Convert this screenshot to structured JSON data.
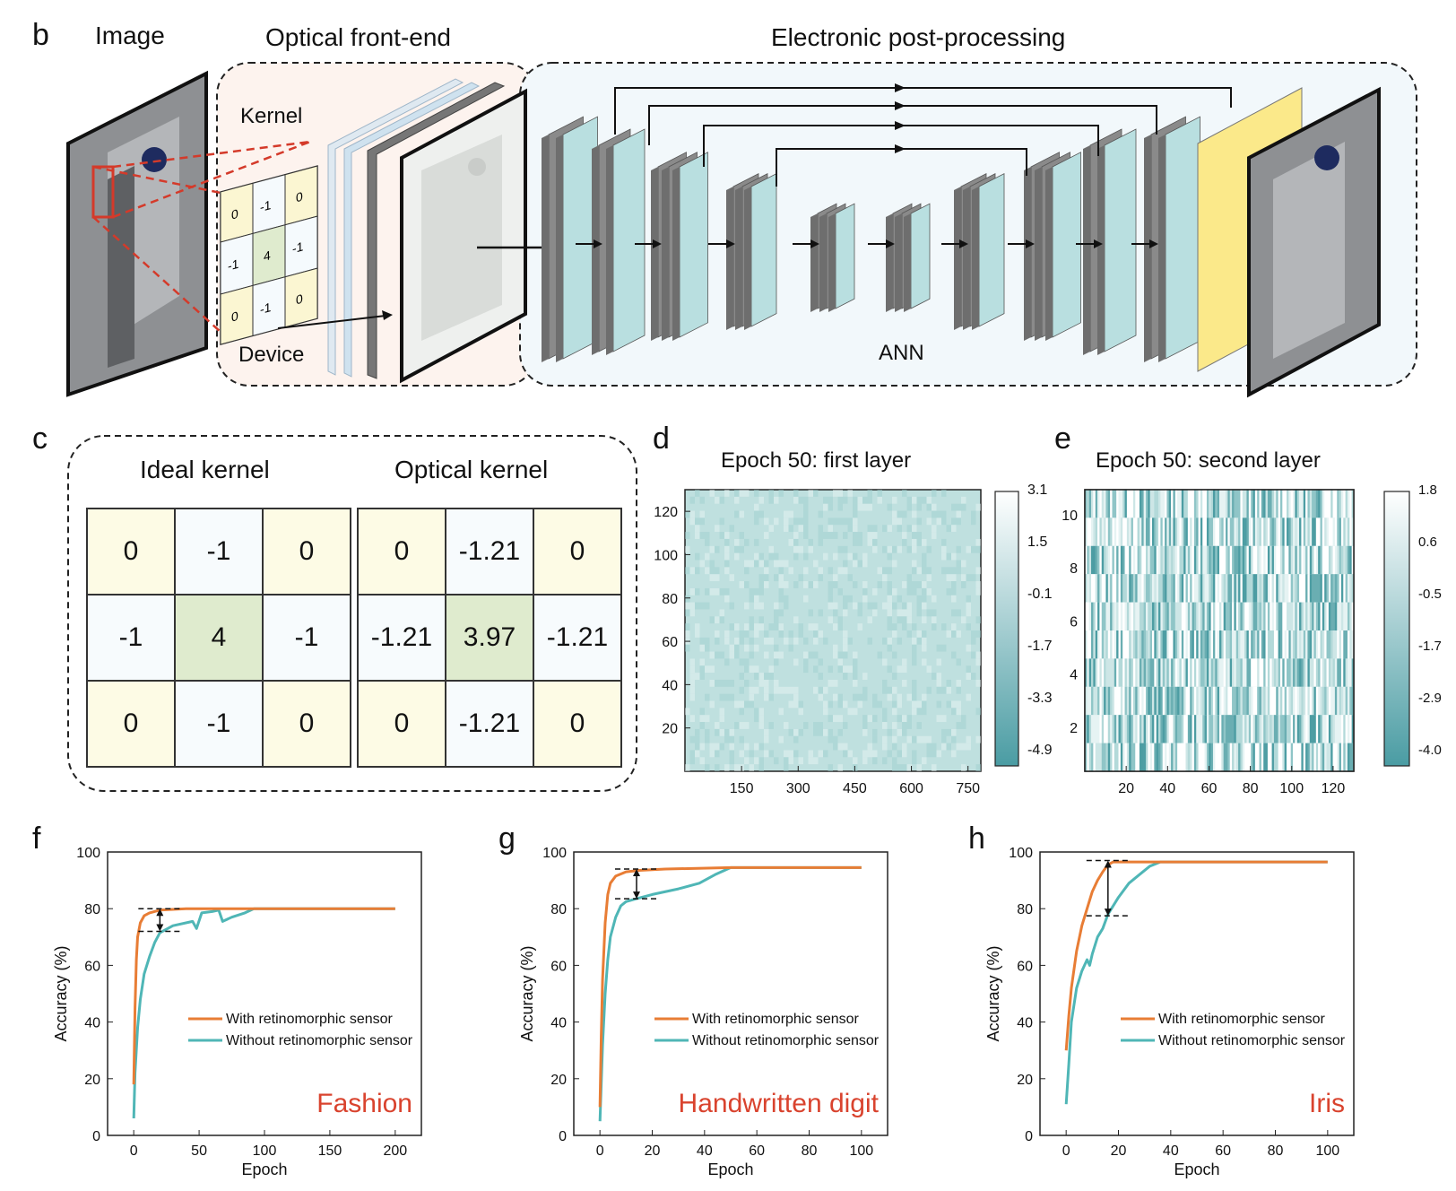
{
  "panel_b": {
    "letter": "b",
    "image_label": "Image",
    "optical_label": "Optical front-end",
    "electronic_label": "Electronic post-processing",
    "kernel_label": "Kernel",
    "device_label": "Device",
    "ann_label": "ANN",
    "kernel_values": [
      "0",
      "-1",
      "0",
      "-1",
      "4",
      "-1",
      "0",
      "-1",
      "0"
    ],
    "colors": {
      "teal": "#b9dfe0",
      "gray": "#8a8a8a",
      "yellow": "#fbe98a",
      "red": "#d43a2a"
    }
  },
  "panel_c": {
    "letter": "c",
    "ideal_title": "Ideal kernel",
    "optical_title": "Optical kernel",
    "ideal": [
      [
        "0",
        "-1",
        "0"
      ],
      [
        "-1",
        "4",
        "-1"
      ],
      [
        "0",
        "-1",
        "0"
      ]
    ],
    "optical": [
      [
        "0",
        "-1.21",
        "0"
      ],
      [
        "-1.21",
        "3.97",
        "-1.21"
      ],
      [
        "0",
        "-1.21",
        "0"
      ]
    ]
  },
  "panel_d": {
    "letter": "d",
    "title": "Epoch 50: first layer",
    "y_ticks": [
      "20",
      "40",
      "60",
      "80",
      "100",
      "120"
    ],
    "x_ticks": [
      "150",
      "300",
      "450",
      "600",
      "750"
    ],
    "colorbar_ticks": [
      "3.1",
      "1.5",
      "-0.1",
      "-1.7",
      "-3.3",
      "-4.9"
    ]
  },
  "panel_e": {
    "letter": "e",
    "title": "Epoch 50: second layer",
    "y_ticks": [
      "2",
      "4",
      "6",
      "8",
      "10"
    ],
    "x_ticks": [
      "20",
      "40",
      "60",
      "80",
      "100",
      "120"
    ],
    "colorbar_ticks": [
      "1.8",
      "0.6",
      "-0.5",
      "-1.7",
      "-2.9",
      "-4.0"
    ]
  },
  "chart_data": [
    {
      "type": "line",
      "panel": "f",
      "dataset_label": "Fashion",
      "xlabel": "Epoch",
      "ylabel": "Accuracy (%)",
      "xlim": [
        -20,
        220
      ],
      "ylim": [
        0,
        100
      ],
      "x_ticks": [
        0,
        50,
        100,
        150,
        200
      ],
      "y_ticks": [
        0,
        20,
        40,
        60,
        80,
        100
      ],
      "legend": [
        "With retinomorphic sensor",
        "Without retinomorphic sensor"
      ],
      "series": [
        {
          "name": "With retinomorphic sensor",
          "color": "#e87d35",
          "points": [
            [
              0,
              18
            ],
            [
              1,
              45
            ],
            [
              2,
              62
            ],
            [
              3,
              70
            ],
            [
              5,
              75
            ],
            [
              8,
              77.5
            ],
            [
              12,
              78.5
            ],
            [
              20,
              79.5
            ],
            [
              40,
              80
            ],
            [
              100,
              80
            ],
            [
              200,
              80
            ]
          ]
        },
        {
          "name": "Without retinomorphic sensor",
          "color": "#4fb6b6",
          "points": [
            [
              0,
              6
            ],
            [
              1,
              22
            ],
            [
              3,
              38
            ],
            [
              5,
              48
            ],
            [
              8,
              57
            ],
            [
              12,
              63
            ],
            [
              16,
              68
            ],
            [
              20,
              71.5
            ],
            [
              30,
              74
            ],
            [
              45,
              75.5
            ],
            [
              48,
              73
            ],
            [
              52,
              78.5
            ],
            [
              60,
              79
            ],
            [
              65,
              79.5
            ],
            [
              68,
              75.5
            ],
            [
              75,
              77
            ],
            [
              85,
              78.5
            ],
            [
              92,
              80
            ],
            [
              200,
              80
            ]
          ]
        }
      ],
      "gap_annotation": {
        "x": 20,
        "upper": 80,
        "lower": 72
      }
    },
    {
      "type": "line",
      "panel": "g",
      "dataset_label": "Handwritten digit",
      "xlabel": "Epoch",
      "ylabel": "Accuracy (%)",
      "xlim": [
        -10,
        110
      ],
      "ylim": [
        0,
        100
      ],
      "x_ticks": [
        0,
        20,
        40,
        60,
        80,
        100
      ],
      "y_ticks": [
        0,
        20,
        40,
        60,
        80,
        100
      ],
      "legend": [
        "With retinomorphic sensor",
        "Without retinomorphic sensor"
      ],
      "series": [
        {
          "name": "With retinomorphic sensor",
          "color": "#e87d35",
          "points": [
            [
              0,
              10
            ],
            [
              0.5,
              35
            ],
            [
              1,
              55
            ],
            [
              2,
              75
            ],
            [
              3,
              85
            ],
            [
              4,
              89
            ],
            [
              6,
              91.5
            ],
            [
              10,
              93
            ],
            [
              15,
              93.5
            ],
            [
              25,
              94
            ],
            [
              50,
              94.5
            ],
            [
              100,
              94.5
            ]
          ]
        },
        {
          "name": "Without retinomorphic sensor",
          "color": "#4fb6b6",
          "points": [
            [
              0,
              5
            ],
            [
              0.5,
              18
            ],
            [
              1,
              32
            ],
            [
              2,
              50
            ],
            [
              3,
              62
            ],
            [
              4,
              70
            ],
            [
              6,
              77
            ],
            [
              8,
              81
            ],
            [
              10,
              82.5
            ],
            [
              14,
              83.5
            ],
            [
              20,
              85
            ],
            [
              30,
              87
            ],
            [
              38,
              89
            ],
            [
              44,
              92
            ],
            [
              50,
              94.5
            ],
            [
              100,
              94.5
            ]
          ]
        }
      ],
      "gap_annotation": {
        "x": 14,
        "upper": 94,
        "lower": 83.5
      }
    },
    {
      "type": "line",
      "panel": "h",
      "dataset_label": "Iris",
      "xlabel": "Epoch",
      "ylabel": "Accuracy (%)",
      "xlim": [
        -10,
        110
      ],
      "ylim": [
        0,
        100
      ],
      "x_ticks": [
        0,
        20,
        40,
        60,
        80,
        100
      ],
      "y_ticks": [
        0,
        20,
        40,
        60,
        80,
        100
      ],
      "legend": [
        "With retinomorphic sensor",
        "Without retinomorphic sensor"
      ],
      "series": [
        {
          "name": "With retinomorphic sensor",
          "color": "#e87d35",
          "points": [
            [
              0,
              30
            ],
            [
              1,
              42
            ],
            [
              2,
              52
            ],
            [
              4,
              65
            ],
            [
              6,
              74
            ],
            [
              8,
              80
            ],
            [
              10,
              86
            ],
            [
              12,
              90
            ],
            [
              14,
              93
            ],
            [
              16,
              95.5
            ],
            [
              18,
              96.5
            ],
            [
              100,
              96.5
            ]
          ]
        },
        {
          "name": "Without retinomorphic sensor",
          "color": "#4fb6b6",
          "points": [
            [
              0,
              11
            ],
            [
              1,
              25
            ],
            [
              2,
              40
            ],
            [
              4,
              52
            ],
            [
              6,
              58
            ],
            [
              8,
              62
            ],
            [
              9,
              60
            ],
            [
              10,
              64
            ],
            [
              12,
              70
            ],
            [
              14,
              73
            ],
            [
              16,
              78
            ],
            [
              20,
              84
            ],
            [
              24,
              89
            ],
            [
              28,
              92
            ],
            [
              32,
              95
            ],
            [
              36,
              96.5
            ],
            [
              100,
              96.5
            ]
          ]
        }
      ],
      "gap_annotation": {
        "x": 16,
        "upper": 97,
        "lower": 77.5
      }
    }
  ],
  "panel_letters": {
    "f": "f",
    "g": "g",
    "h": "h"
  }
}
